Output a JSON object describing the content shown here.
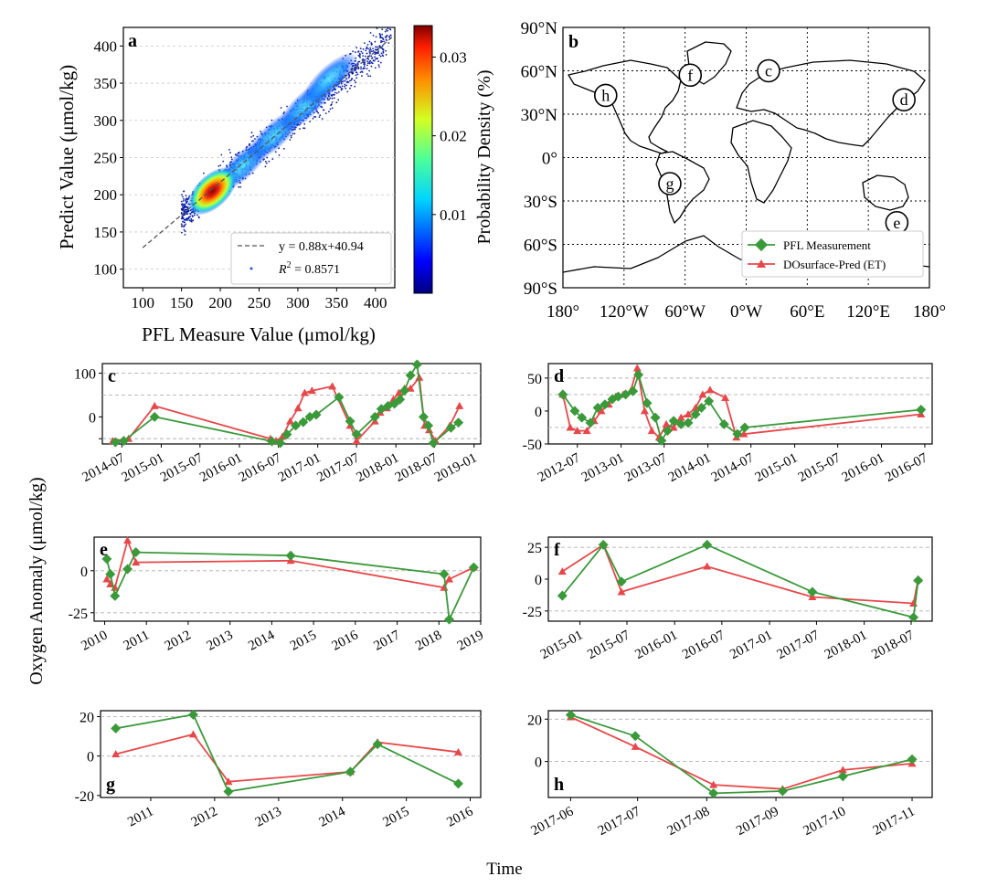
{
  "figure": {
    "shared_ylabel": "Oxygen Anomaly (μmol/kg)",
    "shared_xlabel": "Time"
  },
  "colors": {
    "pfl": "#3a9a3a",
    "pred": "#e8474a",
    "grid": "#b0b0b0"
  },
  "chart_data": [
    {
      "id": "a",
      "type": "scatter",
      "panel_label": "a",
      "xlabel": "PFL Measure Value (μmol/kg)",
      "ylabel": "Predict Value (μmol/kg)",
      "xlim": [
        75,
        425
      ],
      "ylim": [
        75,
        425
      ],
      "xticks": [
        100,
        150,
        200,
        250,
        300,
        350,
        400
      ],
      "yticks": [
        100,
        150,
        200,
        250,
        300,
        350,
        400
      ],
      "fit_line": {
        "slope": 0.88,
        "intercept": 40.94,
        "label": "y = 0.88x+40.94"
      },
      "r2_label": "R",
      "r2_sup": "2",
      "r2_value": " = 0.8571",
      "density_centers": [
        [
          190,
          205
        ],
        [
          230,
          240
        ],
        [
          270,
          280
        ],
        [
          310,
          320
        ],
        [
          340,
          355
        ]
      ],
      "colorbar": {
        "label": "Probability Density (%)",
        "ticks": [
          0.01,
          0.02,
          0.03
        ],
        "tick_labels": [
          "0.01",
          "0.02",
          "0.03"
        ],
        "range": [
          0.0,
          0.034
        ]
      }
    },
    {
      "id": "b",
      "type": "map",
      "panel_label": "b",
      "xticks": [
        "180°",
        "120°W",
        "60°W",
        "0°W",
        "60°E",
        "120°E",
        "180°"
      ],
      "yticks": [
        "90°N",
        "60°N",
        "30°N",
        "0°",
        "30°S",
        "60°S",
        "90°S"
      ],
      "sites": [
        {
          "label": "f",
          "lon": -55,
          "lat": 57
        },
        {
          "label": "c",
          "lon": 22,
          "lat": 60
        },
        {
          "label": "h",
          "lon": -138,
          "lat": 43
        },
        {
          "label": "d",
          "lon": 155,
          "lat": 40
        },
        {
          "label": "g",
          "lon": -75,
          "lat": -18
        },
        {
          "label": "e",
          "lon": 148,
          "lat": -45
        }
      ],
      "legend": [
        "PFL Measurement",
        "DOsurface-Pred (ET)"
      ]
    },
    {
      "id": "c",
      "type": "line",
      "panel_label": "c",
      "xdomain": [
        "2014-04-01",
        "2019-02-01"
      ],
      "ylim": [
        -62,
        122
      ],
      "yticks": [
        -50,
        0,
        100
      ],
      "ytick_labels": [
        "",
        "0",
        "100"
      ],
      "grid_y": [
        -50,
        50,
        100
      ],
      "xticks": [
        "2014-07-01",
        "2015-01-01",
        "2015-07-01",
        "2016-01-01",
        "2016-07-01",
        "2017-01-01",
        "2017-07-01",
        "2018-01-01",
        "2018-07-01",
        "2019-01-01"
      ],
      "xtick_labels": [
        "2014-07",
        "2015-01",
        "2015-07",
        "2016-01",
        "2016-07",
        "2017-01",
        "2017-07",
        "2018-01",
        "2018-07",
        "2019-01"
      ],
      "series": [
        {
          "name": "PFL Measurement",
          "x": [
            "2014-06-01",
            "2014-07-10",
            "2014-12-01",
            "2016-06-01",
            "2016-07-10",
            "2016-08-10",
            "2016-09-20",
            "2016-10-25",
            "2016-11-25",
            "2016-12-25",
            "2017-04-10",
            "2017-06-01",
            "2017-07-01",
            "2017-09-25",
            "2017-10-25",
            "2017-11-25",
            "2017-12-25",
            "2018-01-20",
            "2018-02-10",
            "2018-03-10",
            "2018-04-10",
            "2018-05-10",
            "2018-06-01",
            "2018-06-25",
            "2018-09-15",
            "2018-10-20"
          ],
          "y": [
            -58,
            -55,
            0,
            -56,
            -60,
            -40,
            -20,
            -12,
            0,
            5,
            45,
            -10,
            -40,
            0,
            18,
            25,
            30,
            40,
            60,
            95,
            120,
            0,
            -20,
            -60,
            -25,
            -13
          ]
        },
        {
          "name": "DOsurface-Pred (ET)",
          "x": [
            "2014-05-20",
            "2014-08-01",
            "2014-12-01",
            "2016-05-25",
            "2016-06-20",
            "2016-07-20",
            "2016-08-25",
            "2016-10-01",
            "2016-11-01",
            "2016-12-05",
            "2017-03-10",
            "2017-06-01",
            "2017-07-01",
            "2017-09-25",
            "2017-10-20",
            "2017-11-20",
            "2017-12-20",
            "2018-01-15",
            "2018-02-10",
            "2018-03-10",
            "2018-04-20",
            "2018-05-15",
            "2018-06-05",
            "2018-07-05",
            "2018-09-10",
            "2018-10-25"
          ],
          "y": [
            -55,
            -50,
            25,
            -50,
            -55,
            -45,
            -10,
            20,
            55,
            60,
            70,
            -20,
            -55,
            -10,
            10,
            20,
            40,
            55,
            65,
            65,
            90,
            -20,
            -30,
            -55,
            -20,
            25
          ]
        }
      ]
    },
    {
      "id": "d",
      "type": "line",
      "panel_label": "d",
      "xdomain": [
        "2012-03-01",
        "2016-08-01"
      ],
      "ylim": [
        -50,
        72
      ],
      "yticks": [
        -50,
        0,
        50
      ],
      "ytick_labels": [
        "-50",
        "0",
        "50"
      ],
      "grid_y": [
        -25,
        25,
        50
      ],
      "xticks": [
        "2012-07-01",
        "2013-01-01",
        "2013-07-01",
        "2014-01-01",
        "2014-07-01",
        "2015-01-01",
        "2015-07-01",
        "2016-01-01",
        "2016-07-01"
      ],
      "xtick_labels": [
        "2012-07",
        "2013-01",
        "2013-07",
        "2014-01",
        "2014-07",
        "2015-01",
        "2015-07",
        "2016-01",
        "2016-07"
      ],
      "series": [
        {
          "name": "PFL Measurement",
          "x": [
            "2012-05-01",
            "2012-06-20",
            "2012-07-20",
            "2012-08-25",
            "2012-09-25",
            "2012-10-25",
            "2012-11-25",
            "2012-12-20",
            "2013-01-20",
            "2013-02-20",
            "2013-03-15",
            "2013-04-20",
            "2013-05-25",
            "2013-06-20",
            "2013-07-15",
            "2013-08-10",
            "2013-09-10",
            "2013-10-10",
            "2013-11-10",
            "2013-12-05",
            "2014-01-05",
            "2014-03-10",
            "2014-05-05",
            "2014-06-05",
            "2016-06-15"
          ],
          "y": [
            25,
            0,
            -10,
            -18,
            5,
            10,
            18,
            22,
            25,
            30,
            55,
            12,
            -10,
            -45,
            -30,
            -15,
            -20,
            -18,
            -5,
            5,
            15,
            -20,
            -35,
            -25,
            2
          ]
        },
        {
          "name": "DOsurface-Pred (ET)",
          "x": [
            "2012-05-01",
            "2012-06-01",
            "2012-07-01",
            "2012-08-10",
            "2012-09-10",
            "2012-10-10",
            "2012-11-10",
            "2012-12-10",
            "2013-01-10",
            "2013-02-10",
            "2013-03-10",
            "2013-04-10",
            "2013-05-10",
            "2013-06-10",
            "2013-07-10",
            "2013-08-10",
            "2013-09-10",
            "2013-10-10",
            "2013-11-10",
            "2013-12-10",
            "2014-01-10",
            "2014-03-15",
            "2014-05-01",
            "2014-06-01",
            "2016-06-15"
          ],
          "y": [
            25,
            -25,
            -30,
            -30,
            -15,
            0,
            10,
            22,
            25,
            30,
            65,
            0,
            -30,
            -40,
            -20,
            -25,
            -10,
            -5,
            5,
            25,
            32,
            20,
            -40,
            -35,
            -5
          ]
        }
      ]
    },
    {
      "id": "e",
      "type": "line",
      "panel_label": "e",
      "xdomain": [
        "2009-10-01",
        "2019-01-01"
      ],
      "ylim": [
        -30,
        20
      ],
      "yticks": [
        -25,
        0
      ],
      "ytick_labels": [
        "-25",
        "0"
      ],
      "grid_y": [
        -25,
        0
      ],
      "xticks": [
        "2010-01-01",
        "2011-01-01",
        "2012-01-01",
        "2013-01-01",
        "2014-01-01",
        "2015-01-01",
        "2016-01-01",
        "2017-01-01",
        "2018-01-01",
        "2019-01-01"
      ],
      "xtick_labels": [
        "2010",
        "2011",
        "2012",
        "2013",
        "2014",
        "2015",
        "2016",
        "2017",
        "2018",
        "2019"
      ],
      "series": [
        {
          "name": "PFL Measurement",
          "x": [
            "2010-01-20",
            "2010-02-20",
            "2010-04-01",
            "2010-07-20",
            "2010-10-01",
            "2014-06-15",
            "2018-02-15",
            "2018-04-01",
            "2018-11-01"
          ],
          "y": [
            7,
            -2,
            -15,
            1,
            11,
            9,
            -2,
            -29,
            2
          ]
        },
        {
          "name": "DOsurface-Pred (ET)",
          "x": [
            "2010-01-20",
            "2010-02-20",
            "2010-04-01",
            "2010-07-20",
            "2010-10-01",
            "2014-06-15",
            "2018-02-15",
            "2018-04-01",
            "2018-11-01"
          ],
          "y": [
            -5,
            -8,
            -10,
            18,
            5,
            6,
            -10,
            -5,
            2
          ]
        }
      ]
    },
    {
      "id": "f",
      "type": "line",
      "panel_label": "f",
      "xdomain": [
        "2014-09-01",
        "2018-09-20"
      ],
      "ylim": [
        -33,
        33
      ],
      "yticks": [
        -25,
        0,
        25
      ],
      "ytick_labels": [
        "-25",
        "0",
        "25"
      ],
      "grid_y": [
        -25,
        25
      ],
      "xticks": [
        "2015-01-01",
        "2015-07-01",
        "2016-01-01",
        "2016-07-01",
        "2017-01-01",
        "2017-07-01",
        "2018-01-01",
        "2018-07-01"
      ],
      "xtick_labels": [
        "2015-01",
        "2015-07",
        "2016-01",
        "2016-07",
        "2017-01",
        "2017-07",
        "2018-01",
        "2018-07"
      ],
      "series": [
        {
          "name": "PFL Measurement",
          "x": [
            "2014-10-25",
            "2015-04-01",
            "2015-06-10",
            "2016-05-05",
            "2017-06-15",
            "2018-07-10",
            "2018-07-28"
          ],
          "y": [
            -13,
            27,
            -2,
            27,
            -10,
            -30,
            -1
          ]
        },
        {
          "name": "DOsurface-Pred (ET)",
          "x": [
            "2014-10-25",
            "2015-04-01",
            "2015-06-10",
            "2016-05-05",
            "2017-06-15",
            "2018-07-10",
            "2018-07-28"
          ],
          "y": [
            6,
            27,
            -10,
            10,
            -14,
            -19,
            0
          ]
        }
      ]
    },
    {
      "id": "g",
      "type": "line",
      "panel_label": "g",
      "xdomain": [
        "2010-03-20",
        "2016-03-01"
      ],
      "ylim": [
        -21,
        23
      ],
      "yticks": [
        -20,
        0,
        20
      ],
      "ytick_labels": [
        "-20",
        "0",
        "20"
      ],
      "grid_y": [
        0,
        20
      ],
      "xticks": [
        "2011-01-01",
        "2012-01-01",
        "2013-01-01",
        "2014-01-01",
        "2015-01-01",
        "2016-01-01"
      ],
      "xtick_labels": [
        "2011",
        "2012",
        "2013",
        "2014",
        "2015",
        "2016"
      ],
      "series": [
        {
          "name": "PFL Measurement",
          "x": [
            "2010-06-15",
            "2011-09-01",
            "2012-03-20",
            "2014-02-15",
            "2014-07-20",
            "2015-10-25"
          ],
          "y": [
            14,
            21,
            -18,
            -8,
            6,
            -14
          ]
        },
        {
          "name": "DOsurface-Pred (ET)",
          "x": [
            "2010-06-15",
            "2011-09-01",
            "2012-03-20",
            "2014-02-15",
            "2014-07-20",
            "2015-10-25"
          ],
          "y": [
            1,
            11,
            -13,
            -8,
            7,
            2
          ]
        }
      ]
    },
    {
      "id": "h",
      "type": "line",
      "panel_label": "h",
      "xdomain": [
        "2017-05-22",
        "2017-11-10"
      ],
      "ylim": [
        -17,
        24
      ],
      "yticks": [
        0,
        20
      ],
      "ytick_labels": [
        "0",
        "20"
      ],
      "grid_y": [
        0,
        20
      ],
      "xticks": [
        "2017-06-01",
        "2017-07-01",
        "2017-08-01",
        "2017-09-01",
        "2017-10-01",
        "2017-11-01"
      ],
      "xtick_labels": [
        "2017-06",
        "2017-07",
        "2017-08",
        "2017-09",
        "2017-10",
        "2017-11"
      ],
      "series": [
        {
          "name": "PFL Measurement",
          "x": [
            "2017-06-01",
            "2017-06-30",
            "2017-08-04",
            "2017-09-04",
            "2017-10-01",
            "2017-11-01"
          ],
          "y": [
            22,
            12,
            -15,
            -14,
            -7,
            1
          ]
        },
        {
          "name": "DOsurface-Pred (ET)",
          "x": [
            "2017-06-01",
            "2017-06-30",
            "2017-08-04",
            "2017-09-04",
            "2017-10-01",
            "2017-11-01"
          ],
          "y": [
            21,
            7,
            -11,
            -13,
            -4,
            -1
          ]
        }
      ]
    }
  ]
}
